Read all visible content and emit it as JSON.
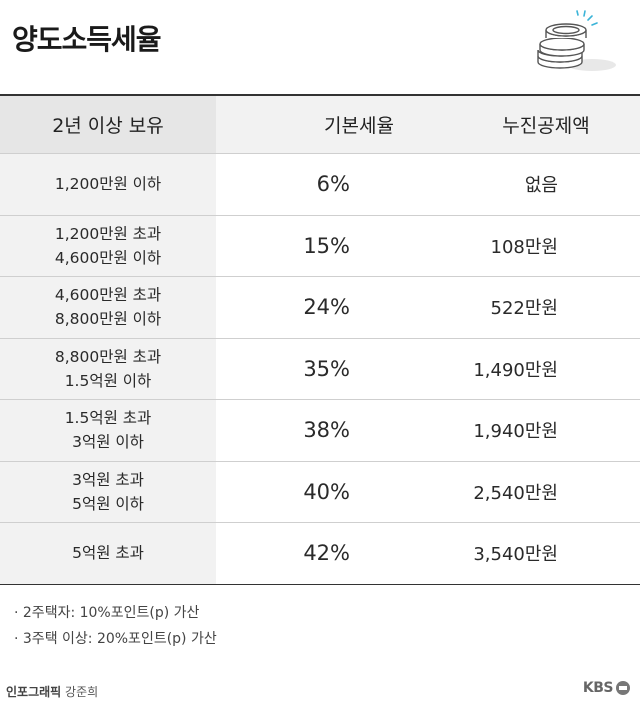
{
  "title": "양도소득세율",
  "headers": [
    "2년 이상 보유",
    "기본세율",
    "누진공제액"
  ],
  "rows": [
    {
      "range_line1": "1,200만원 이하",
      "range_line2": "",
      "rate": "6%",
      "deduction": "없음"
    },
    {
      "range_line1": "1,200만원 초과",
      "range_line2": "4,600만원 이하",
      "rate": "15%",
      "deduction": "108만원"
    },
    {
      "range_line1": "4,600만원 초과",
      "range_line2": "8,800만원 이하",
      "rate": "24%",
      "deduction": "522만원"
    },
    {
      "range_line1": "8,800만원 초과",
      "range_line2": "1.5억원 이하",
      "rate": "35%",
      "deduction": "1,490만원"
    },
    {
      "range_line1": "1.5억원 초과",
      "range_line2": "3억원 이하",
      "rate": "38%",
      "deduction": "1,940만원"
    },
    {
      "range_line1": "3억원 초과",
      "range_line2": "5억원 이하",
      "rate": "40%",
      "deduction": "2,540만원"
    },
    {
      "range_line1": "5억원 초과",
      "range_line2": "",
      "rate": "42%",
      "deduction": "3,540만원"
    }
  ],
  "notes": [
    "· 2주택자: 10%포인트(p) 가산",
    "· 3주택 이상: 20%포인트(p) 가산"
  ],
  "credit": {
    "label": "인포그래픽",
    "author": "강준희"
  },
  "brand": "KBS",
  "icons": {
    "coins": "coins-icon",
    "brand": "kbs-logo-icon"
  }
}
